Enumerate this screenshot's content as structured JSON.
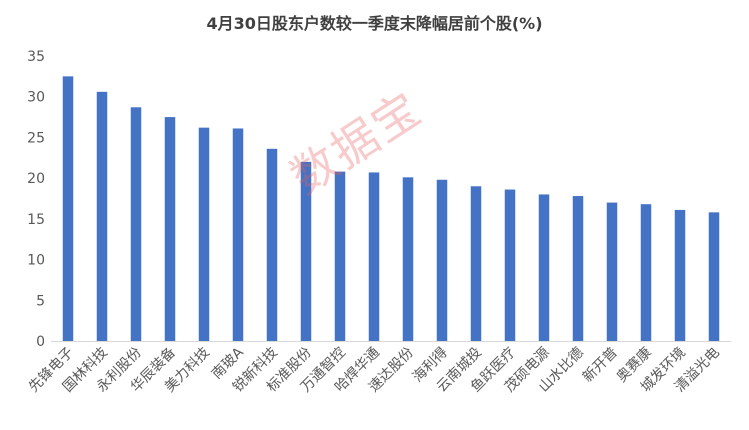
{
  "chart_data": {
    "type": "bar",
    "title": "4月30日股东户数较一季度末降幅居前个股(%)",
    "xlabel": "",
    "ylabel": "",
    "ylim": [
      0,
      35
    ],
    "yticks": [
      0,
      5,
      10,
      15,
      20,
      25,
      30,
      35
    ],
    "grid": "none",
    "legend": "none",
    "bar_color": "#4472C4",
    "categories": [
      "先锋电子",
      "国林科技",
      "永利股份",
      "华辰装备",
      "美力科技",
      "南玻A",
      "锐新科技",
      "标准股份",
      "万通智控",
      "哈焊华通",
      "速达股份",
      "海利得",
      "云南城投",
      "鱼跃医疗",
      "茂硕电源",
      "山水比德",
      "新开普",
      "奥赛康",
      "城发环境",
      "清溢光电"
    ],
    "values": [
      32.5,
      30.6,
      28.7,
      27.5,
      26.2,
      26.1,
      23.6,
      22.0,
      20.8,
      20.7,
      20.1,
      19.8,
      19.0,
      18.6,
      18.0,
      17.8,
      17.0,
      16.8,
      16.1,
      15.8
    ]
  },
  "watermark": "数据宝"
}
